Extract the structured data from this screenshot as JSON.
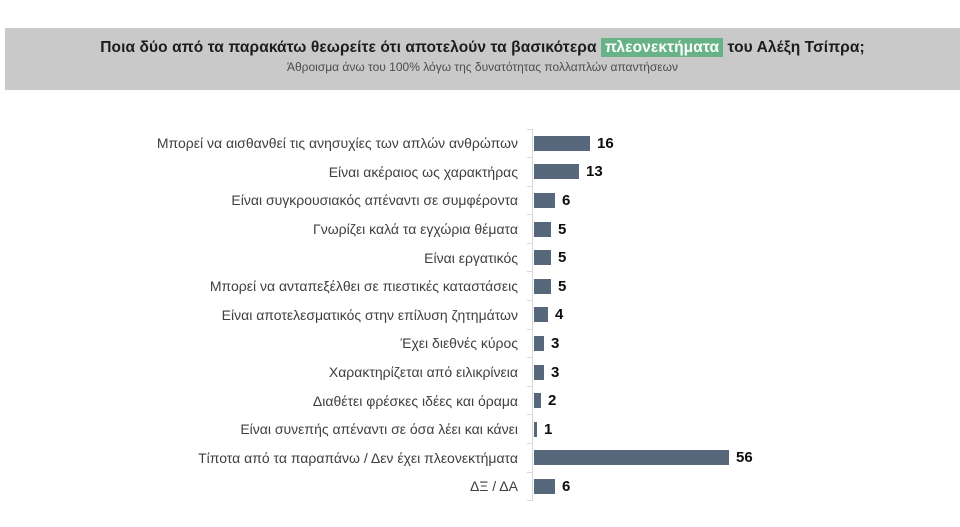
{
  "header": {
    "title_before": "Ποια δύο από τα παρακάτω θεωρείτε ότι αποτελούν τα βασικότερα ",
    "title_highlight": "πλεονεκτήματα",
    "title_after": " του Αλέξη Τσίπρα;",
    "subtitle": "Άθροισμα άνω του 100% λόγω της δυνατότητας πολλαπλών απαντήσεων"
  },
  "colors": {
    "header_bg": "#c9c9c9",
    "highlight_bg": "#67b286",
    "highlight_text": "#ffffff",
    "bar": "#57677c",
    "axis_line": "#d8d8d8",
    "title_text": "#1c1c1c",
    "subtitle_text": "#4d4d4d",
    "category_text": "#3f3f3f",
    "value_text": "#0d0d0d",
    "background": "#ffffff"
  },
  "chart_data": {
    "type": "bar",
    "orientation": "horizontal",
    "title": "Ποια δύο από τα παρακάτω θεωρείτε ότι αποτελούν τα βασικότερα πλεονεκτήματα του Αλέξη Τσίπρα;",
    "subtitle": "Άθροισμα άνω του 100% λόγω της δυνατότητας πολλαπλών απαντήσεων",
    "categories": [
      "Μπορεί να αισθανθεί τις ανησυχίες των απλών ανθρώπων",
      "Είναι ακέραιος ως χαρακτήρας",
      "Είναι συγκρουσιακός απέναντι σε συμφέροντα",
      "Γνωρίζει καλά τα εγχώρια θέματα",
      "Είναι εργατικός",
      "Μπορεί να ανταπεξέλθει σε πιεστικές καταστάσεις",
      "Είναι αποτελεσματικός στην επίλυση ζητημάτων",
      "Έχει διεθνές κύρος",
      "Χαρακτηρίζεται από ειλικρίνεια",
      "Διαθέτει φρέσκες ιδέες και όραμα",
      "Είναι συνεπής απέναντι σε όσα λέει και κάνει",
      "Τίποτα από τα παραπάνω / Δεν έχει πλεονεκτήματα",
      "ΔΞ / ΔΑ"
    ],
    "values": [
      16,
      13,
      6,
      5,
      5,
      5,
      4,
      3,
      3,
      2,
      1,
      56,
      6
    ],
    "value_labels": true,
    "xlim": [
      0,
      60
    ],
    "grid": false,
    "legend": false,
    "xlabel": "",
    "ylabel": ""
  }
}
